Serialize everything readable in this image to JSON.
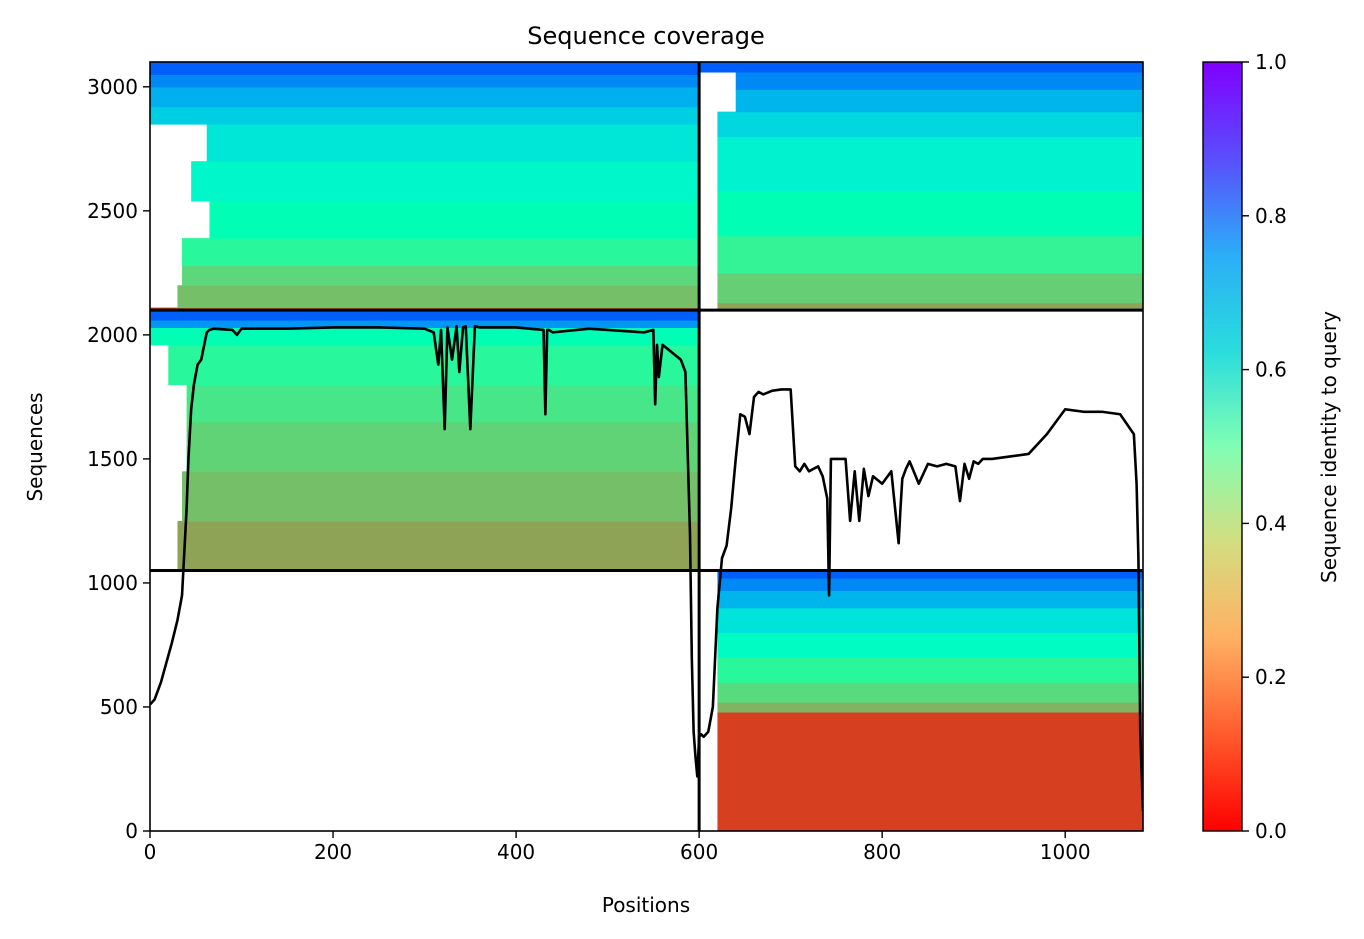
{
  "chart_data": {
    "type": "heatmap",
    "title": "Sequence coverage",
    "xlabel": "Positions",
    "ylabel": "Sequences",
    "xlim": [
      0,
      1085
    ],
    "ylim": [
      0,
      3100
    ],
    "x_ticks": [
      0,
      200,
      400,
      600,
      800,
      1000
    ],
    "y_ticks": [
      0,
      500,
      1000,
      1500,
      2000,
      2500,
      3000
    ],
    "colorbar": {
      "label": "Sequence identity to query",
      "range": [
        0,
        1
      ],
      "ticks": [
        "0.0",
        "0.2",
        "0.4",
        "0.6",
        "0.8",
        "1.0"
      ],
      "colormap": "rainbow_r"
    },
    "block_boundaries": {
      "x": [
        600
      ],
      "y": [
        1050,
        2100
      ]
    },
    "blocks": [
      {
        "name": "top-left",
        "x_range": [
          0,
          600
        ],
        "y_range": [
          2100,
          3100
        ],
        "bands": [
          {
            "y": [
              2100,
              2110
            ],
            "identity": 0.08,
            "x_start": 0
          },
          {
            "y": [
              2110,
              2200
            ],
            "identity": 0.27,
            "x_start": 30
          },
          {
            "y": [
              2200,
              2280
            ],
            "identity": 0.32,
            "x_start": 35
          },
          {
            "y": [
              2280,
              2390
            ],
            "identity": 0.42,
            "x_start": 35
          },
          {
            "y": [
              2390,
              2540
            ],
            "identity": 0.5,
            "x_start": 65
          },
          {
            "y": [
              2540,
              2700
            ],
            "identity": 0.58,
            "x_start": 45
          },
          {
            "y": [
              2700,
              2850
            ],
            "identity": 0.64,
            "x_start": 62
          },
          {
            "y": [
              2850,
              2920
            ],
            "identity": 0.7,
            "x_start": 0
          },
          {
            "y": [
              2920,
              3000
            ],
            "identity": 0.76,
            "x_start": 0
          },
          {
            "y": [
              3000,
              3050
            ],
            "identity": 0.82,
            "x_start": 0
          },
          {
            "y": [
              3050,
              3100
            ],
            "identity": 0.88,
            "x_start": 0
          }
        ]
      },
      {
        "name": "top-right",
        "x_range": [
          600,
          1085
        ],
        "y_range": [
          2100,
          3100
        ],
        "bands": [
          {
            "y": [
              2100,
              2130
            ],
            "identity": 0.22,
            "x_start": 620
          },
          {
            "y": [
              2130,
              2250
            ],
            "identity": 0.3,
            "x_start": 620
          },
          {
            "y": [
              2250,
              2400
            ],
            "identity": 0.4,
            "x_start": 620
          },
          {
            "y": [
              2400,
              2580
            ],
            "identity": 0.5,
            "x_start": 620
          },
          {
            "y": [
              2580,
              2800
            ],
            "identity": 0.6,
            "x_start": 620
          },
          {
            "y": [
              2800,
              2900
            ],
            "identity": 0.68,
            "x_start": 620
          },
          {
            "y": [
              2900,
              2990
            ],
            "identity": 0.75,
            "x_start": 640
          },
          {
            "y": [
              2990,
              3060
            ],
            "identity": 0.82,
            "x_start": 640
          },
          {
            "y": [
              3060,
              3100
            ],
            "identity": 0.88,
            "x_start": 600
          }
        ]
      },
      {
        "name": "middle-left",
        "x_range": [
          0,
          600
        ],
        "y_range": [
          1050,
          2100
        ],
        "bands": [
          {
            "y": [
              1050,
              1250
            ],
            "identity": 0.22,
            "x_start": 30
          },
          {
            "y": [
              1250,
              1450
            ],
            "identity": 0.27,
            "x_start": 35
          },
          {
            "y": [
              1450,
              1650
            ],
            "identity": 0.31,
            "x_start": 40
          },
          {
            "y": [
              1650,
              1800
            ],
            "identity": 0.36,
            "x_start": 40
          },
          {
            "y": [
              1800,
              1960
            ],
            "identity": 0.42,
            "x_start": 20
          },
          {
            "y": [
              1960,
              2030
            ],
            "identity": 0.5,
            "x_start": 0
          },
          {
            "y": [
              2030,
              2060
            ],
            "identity": 0.8,
            "x_start": 0
          },
          {
            "y": [
              2060,
              2100
            ],
            "identity": 0.88,
            "x_start": 0
          }
        ]
      },
      {
        "name": "bottom-right",
        "x_range": [
          600,
          1085
        ],
        "y_range": [
          0,
          1050
        ],
        "bands": [
          {
            "y": [
              0,
              480
            ],
            "identity": 0.08,
            "x_start": 620
          },
          {
            "y": [
              480,
              520
            ],
            "identity": 0.25,
            "x_start": 620
          },
          {
            "y": [
              520,
              600
            ],
            "identity": 0.33,
            "x_start": 620
          },
          {
            "y": [
              600,
              700
            ],
            "identity": 0.42,
            "x_start": 620
          },
          {
            "y": [
              700,
              800
            ],
            "identity": 0.55,
            "x_start": 620
          },
          {
            "y": [
              800,
              900
            ],
            "identity": 0.65,
            "x_start": 620
          },
          {
            "y": [
              900,
              970
            ],
            "identity": 0.75,
            "x_start": 620
          },
          {
            "y": [
              970,
              1020
            ],
            "identity": 0.82,
            "x_start": 620
          },
          {
            "y": [
              1020,
              1050
            ],
            "identity": 0.88,
            "x_start": 620
          }
        ]
      }
    ],
    "coverage_line": {
      "color": "#000000",
      "x": [
        0,
        5,
        12,
        18,
        24,
        30,
        35,
        40,
        42,
        45,
        48,
        52,
        56,
        62,
        65,
        70,
        90,
        95,
        100,
        150,
        200,
        250,
        300,
        310,
        315,
        318,
        322,
        325,
        330,
        335,
        338,
        342,
        345,
        350,
        355,
        360,
        400,
        430,
        432,
        434,
        436,
        440,
        480,
        500,
        540,
        550,
        552,
        554,
        556,
        560,
        580,
        585,
        590,
        592,
        594,
        596,
        598,
        600,
        602,
        605,
        610,
        615,
        620,
        625,
        630,
        635,
        640,
        645,
        650,
        655,
        660,
        665,
        670,
        680,
        690,
        700,
        705,
        710,
        715,
        720,
        730,
        735,
        740,
        742,
        744,
        748,
        760,
        765,
        770,
        775,
        780,
        785,
        790,
        800,
        810,
        818,
        820,
        822,
        826,
        830,
        840,
        850,
        860,
        870,
        880,
        885,
        890,
        895,
        900,
        905,
        910,
        920,
        940,
        960,
        980,
        1000,
        1020,
        1040,
        1060,
        1075,
        1078,
        1080,
        1082,
        1085
      ],
      "y": [
        510,
        530,
        600,
        680,
        760,
        850,
        950,
        1300,
        1500,
        1700,
        1800,
        1880,
        1900,
        2010,
        2020,
        2025,
        2020,
        2000,
        2025,
        2025,
        2030,
        2030,
        2025,
        2010,
        1880,
        2020,
        1620,
        2030,
        1900,
        2035,
        1850,
        2030,
        2035,
        1620,
        2035,
        2030,
        2030,
        2020,
        1680,
        2020,
        2020,
        2010,
        2025,
        2020,
        2010,
        2020,
        1720,
        1960,
        1830,
        1960,
        1900,
        1850,
        1200,
        700,
        400,
        300,
        220,
        380,
        390,
        380,
        400,
        500,
        900,
        1100,
        1150,
        1300,
        1500,
        1680,
        1670,
        1600,
        1750,
        1770,
        1760,
        1775,
        1780,
        1780,
        1470,
        1450,
        1480,
        1450,
        1470,
        1430,
        1340,
        950,
        1500,
        1500,
        1500,
        1250,
        1450,
        1250,
        1460,
        1350,
        1430,
        1400,
        1450,
        1160,
        1300,
        1420,
        1460,
        1490,
        1400,
        1480,
        1470,
        1480,
        1470,
        1330,
        1480,
        1420,
        1490,
        1480,
        1500,
        1500,
        1510,
        1520,
        1600,
        1700,
        1690,
        1690,
        1680,
        1600,
        1400,
        1100,
        400,
        80
      ]
    }
  }
}
